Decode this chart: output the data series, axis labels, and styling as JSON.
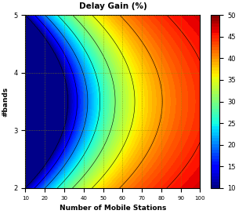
{
  "title": "Delay Gain (%)",
  "xlabel": "Number of Mobile Stations",
  "ylabel": "#bands",
  "xlim": [
    10,
    100
  ],
  "ylim": [
    2,
    5
  ],
  "xticks": [
    10,
    20,
    30,
    40,
    50,
    60,
    70,
    80,
    90,
    100
  ],
  "yticks": [
    2,
    3,
    4,
    5
  ],
  "colorbar_ticks": [
    10,
    15,
    20,
    25,
    30,
    35,
    40,
    45,
    50
  ],
  "vmin": 10,
  "vmax": 50,
  "grid_color": "#888800",
  "grid_style": "dotted"
}
